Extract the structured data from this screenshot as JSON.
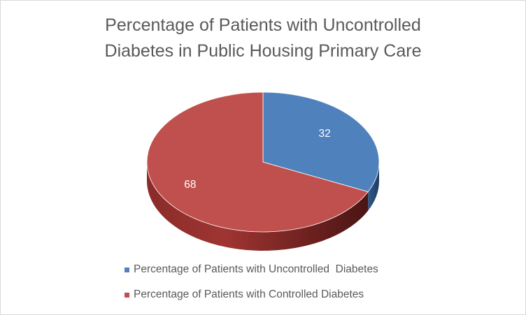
{
  "chart_data": {
    "type": "pie",
    "title": "Percentage of Patients with Uncontrolled\nDiabetes in Public Housing Primary Care",
    "slices": [
      {
        "label": "Percentage of Patients with Uncontrolled  Diabetes",
        "value": 32,
        "color": "#4f81bd"
      },
      {
        "label": "Percentage of Patients with Controlled Diabetes",
        "value": 68,
        "color": "#c0504d"
      }
    ],
    "data_labels_shown": true,
    "style": "3d",
    "legend_position": "bottom"
  }
}
